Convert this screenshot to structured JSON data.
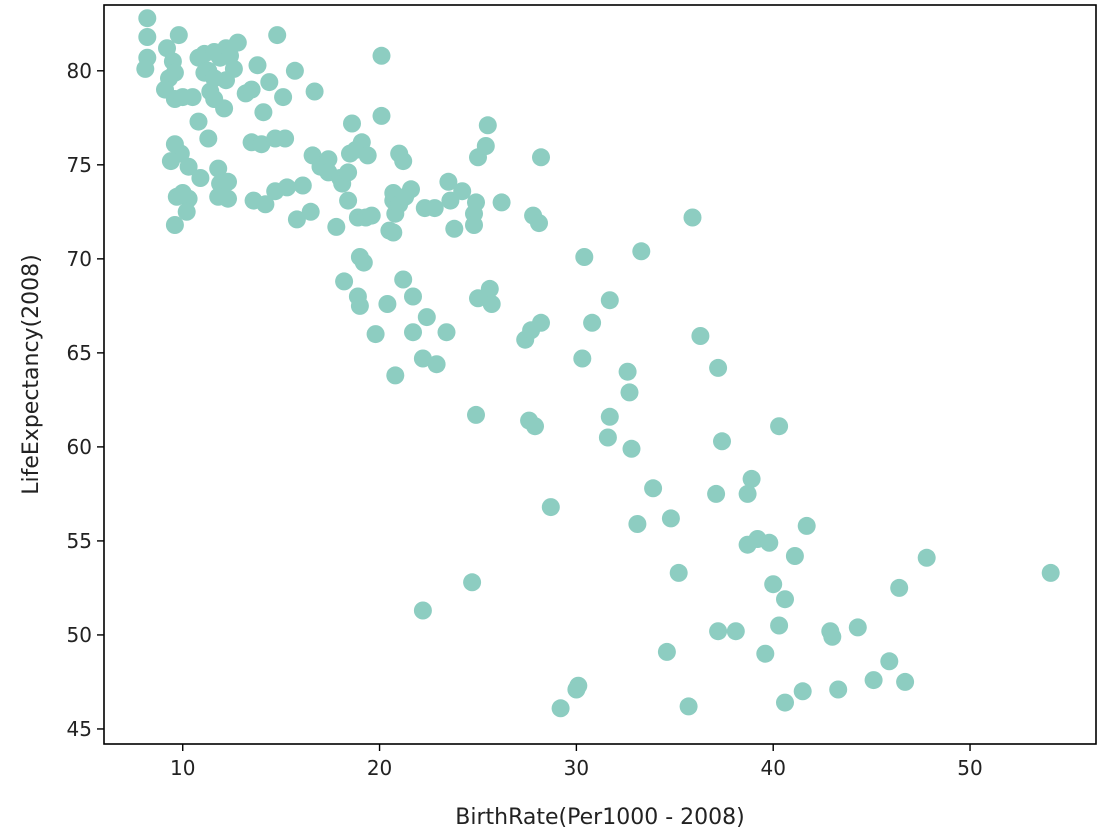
{
  "chart_data": {
    "type": "scatter",
    "title": "",
    "xlabel": "BirthRate(Per1000 - 2008)",
    "ylabel": "LifeExpectancy(2008)",
    "xlim": [
      6,
      56.4
    ],
    "ylim": [
      44.2,
      83.5
    ],
    "x_ticks": [
      10,
      20,
      30,
      40,
      50
    ],
    "y_ticks": [
      45,
      50,
      55,
      60,
      65,
      70,
      75,
      80
    ],
    "grid": false,
    "legend": "none",
    "colors": {
      "points": "#8dcdc1",
      "axes": "#000000",
      "text": "#222222"
    },
    "series": [
      {
        "points": [
          [
            8.2,
            82.8
          ],
          [
            8.2,
            81.8
          ],
          [
            8.2,
            80.7
          ],
          [
            8.1,
            80.1
          ],
          [
            9.2,
            81.2
          ],
          [
            9.5,
            80.5
          ],
          [
            9.6,
            79.9
          ],
          [
            9.8,
            81.9
          ],
          [
            9.3,
            79.6
          ],
          [
            9.1,
            79.0
          ],
          [
            9.6,
            78.5
          ],
          [
            10.0,
            78.6
          ],
          [
            10.5,
            78.6
          ],
          [
            10.8,
            80.7
          ],
          [
            11.1,
            80.9
          ],
          [
            11.1,
            79.9
          ],
          [
            11.6,
            81.0
          ],
          [
            11.9,
            80.7
          ],
          [
            12.2,
            81.2
          ],
          [
            12.4,
            80.8
          ],
          [
            12.8,
            81.5
          ],
          [
            11.3,
            80.0
          ],
          [
            11.6,
            79.6
          ],
          [
            12.2,
            79.5
          ],
          [
            12.6,
            80.1
          ],
          [
            11.4,
            78.9
          ],
          [
            11.6,
            78.5
          ],
          [
            12.1,
            78.0
          ],
          [
            13.2,
            78.8
          ],
          [
            13.5,
            79.0
          ],
          [
            13.8,
            80.3
          ],
          [
            14.4,
            79.4
          ],
          [
            14.8,
            81.9
          ],
          [
            15.1,
            78.6
          ],
          [
            15.7,
            80.0
          ],
          [
            16.7,
            78.9
          ],
          [
            14.1,
            77.8
          ],
          [
            10.8,
            77.3
          ],
          [
            11.3,
            76.4
          ],
          [
            9.6,
            76.1
          ],
          [
            9.9,
            75.6
          ],
          [
            9.4,
            75.2
          ],
          [
            10.3,
            74.9
          ],
          [
            10.9,
            74.3
          ],
          [
            11.8,
            74.8
          ],
          [
            11.9,
            74.0
          ],
          [
            12.3,
            74.1
          ],
          [
            11.8,
            73.3
          ],
          [
            12.3,
            73.2
          ],
          [
            9.7,
            73.3
          ],
          [
            10.0,
            73.5
          ],
          [
            10.3,
            73.2
          ],
          [
            10.2,
            72.5
          ],
          [
            9.6,
            71.8
          ],
          [
            13.5,
            76.2
          ],
          [
            14.0,
            76.1
          ],
          [
            14.7,
            76.4
          ],
          [
            15.2,
            76.4
          ],
          [
            13.6,
            73.1
          ],
          [
            14.2,
            72.9
          ],
          [
            14.7,
            73.6
          ],
          [
            15.3,
            73.8
          ],
          [
            16.1,
            73.9
          ],
          [
            15.8,
            72.1
          ],
          [
            16.5,
            72.5
          ],
          [
            16.6,
            75.5
          ],
          [
            17.0,
            74.9
          ],
          [
            17.4,
            75.3
          ],
          [
            17.4,
            74.6
          ],
          [
            18.0,
            74.3
          ],
          [
            18.1,
            74.0
          ],
          [
            18.4,
            74.6
          ],
          [
            18.5,
            75.6
          ],
          [
            18.8,
            75.8
          ],
          [
            19.1,
            76.2
          ],
          [
            18.6,
            77.2
          ],
          [
            19.4,
            75.5
          ],
          [
            20.1,
            77.6
          ],
          [
            20.1,
            80.8
          ],
          [
            17.8,
            71.7
          ],
          [
            18.4,
            73.1
          ],
          [
            18.9,
            72.2
          ],
          [
            19.3,
            72.2
          ],
          [
            19.6,
            72.3
          ],
          [
            20.5,
            71.5
          ],
          [
            20.7,
            71.4
          ],
          [
            20.8,
            72.4
          ],
          [
            20.7,
            73.1
          ],
          [
            20.7,
            73.5
          ],
          [
            21.0,
            72.9
          ],
          [
            21.3,
            73.3
          ],
          [
            21.6,
            73.7
          ],
          [
            21.0,
            75.6
          ],
          [
            21.2,
            75.2
          ],
          [
            22.3,
            72.7
          ],
          [
            22.8,
            72.7
          ],
          [
            23.5,
            74.1
          ],
          [
            23.6,
            73.1
          ],
          [
            23.8,
            71.6
          ],
          [
            24.2,
            73.6
          ],
          [
            24.9,
            73.0
          ],
          [
            24.8,
            72.4
          ],
          [
            24.8,
            71.8
          ],
          [
            25.0,
            75.4
          ],
          [
            25.4,
            76.0
          ],
          [
            25.5,
            77.1
          ],
          [
            26.2,
            73.0
          ],
          [
            27.8,
            72.3
          ],
          [
            28.1,
            71.9
          ],
          [
            28.2,
            75.4
          ],
          [
            18.2,
            68.8
          ],
          [
            18.9,
            68.0
          ],
          [
            19.0,
            70.1
          ],
          [
            19.2,
            69.8
          ],
          [
            19.0,
            67.5
          ],
          [
            20.4,
            67.6
          ],
          [
            21.2,
            68.9
          ],
          [
            21.7,
            68.0
          ],
          [
            19.8,
            66.0
          ],
          [
            21.7,
            66.1
          ],
          [
            22.4,
            66.9
          ],
          [
            23.4,
            66.1
          ],
          [
            20.8,
            63.8
          ],
          [
            22.2,
            64.7
          ],
          [
            22.9,
            64.4
          ],
          [
            25.0,
            67.9
          ],
          [
            25.6,
            68.4
          ],
          [
            25.7,
            67.6
          ],
          [
            27.4,
            65.7
          ],
          [
            27.7,
            66.2
          ],
          [
            28.2,
            66.6
          ],
          [
            30.4,
            70.1
          ],
          [
            30.8,
            66.6
          ],
          [
            31.7,
            67.8
          ],
          [
            33.3,
            70.4
          ],
          [
            35.9,
            72.2
          ],
          [
            30.3,
            64.7
          ],
          [
            32.6,
            64.0
          ],
          [
            32.7,
            62.9
          ],
          [
            31.7,
            61.6
          ],
          [
            31.6,
            60.5
          ],
          [
            32.8,
            59.9
          ],
          [
            36.3,
            65.9
          ],
          [
            37.2,
            64.2
          ],
          [
            24.9,
            61.7
          ],
          [
            27.6,
            61.4
          ],
          [
            27.9,
            61.1
          ],
          [
            37.4,
            60.3
          ],
          [
            40.3,
            61.1
          ],
          [
            28.7,
            56.8
          ],
          [
            33.1,
            55.9
          ],
          [
            33.9,
            57.8
          ],
          [
            34.8,
            56.2
          ],
          [
            37.1,
            57.5
          ],
          [
            38.7,
            57.5
          ],
          [
            38.9,
            58.3
          ],
          [
            39.2,
            55.1
          ],
          [
            38.7,
            54.8
          ],
          [
            39.8,
            54.9
          ],
          [
            41.1,
            54.2
          ],
          [
            41.7,
            55.8
          ],
          [
            40.0,
            52.7
          ],
          [
            40.6,
            51.9
          ],
          [
            35.2,
            53.3
          ],
          [
            24.7,
            52.8
          ],
          [
            22.2,
            51.3
          ],
          [
            37.2,
            50.2
          ],
          [
            38.1,
            50.2
          ],
          [
            40.3,
            50.5
          ],
          [
            42.9,
            50.2
          ],
          [
            43.0,
            49.9
          ],
          [
            44.3,
            50.4
          ],
          [
            46.4,
            52.5
          ],
          [
            47.8,
            54.1
          ],
          [
            54.1,
            53.3
          ],
          [
            34.6,
            49.1
          ],
          [
            39.6,
            49.0
          ],
          [
            45.9,
            48.6
          ],
          [
            45.1,
            47.6
          ],
          [
            46.7,
            47.5
          ],
          [
            43.3,
            47.1
          ],
          [
            41.5,
            47.0
          ],
          [
            40.6,
            46.4
          ],
          [
            35.7,
            46.2
          ],
          [
            30.1,
            47.3
          ],
          [
            30.0,
            47.1
          ],
          [
            29.2,
            46.1
          ]
        ]
      }
    ]
  }
}
